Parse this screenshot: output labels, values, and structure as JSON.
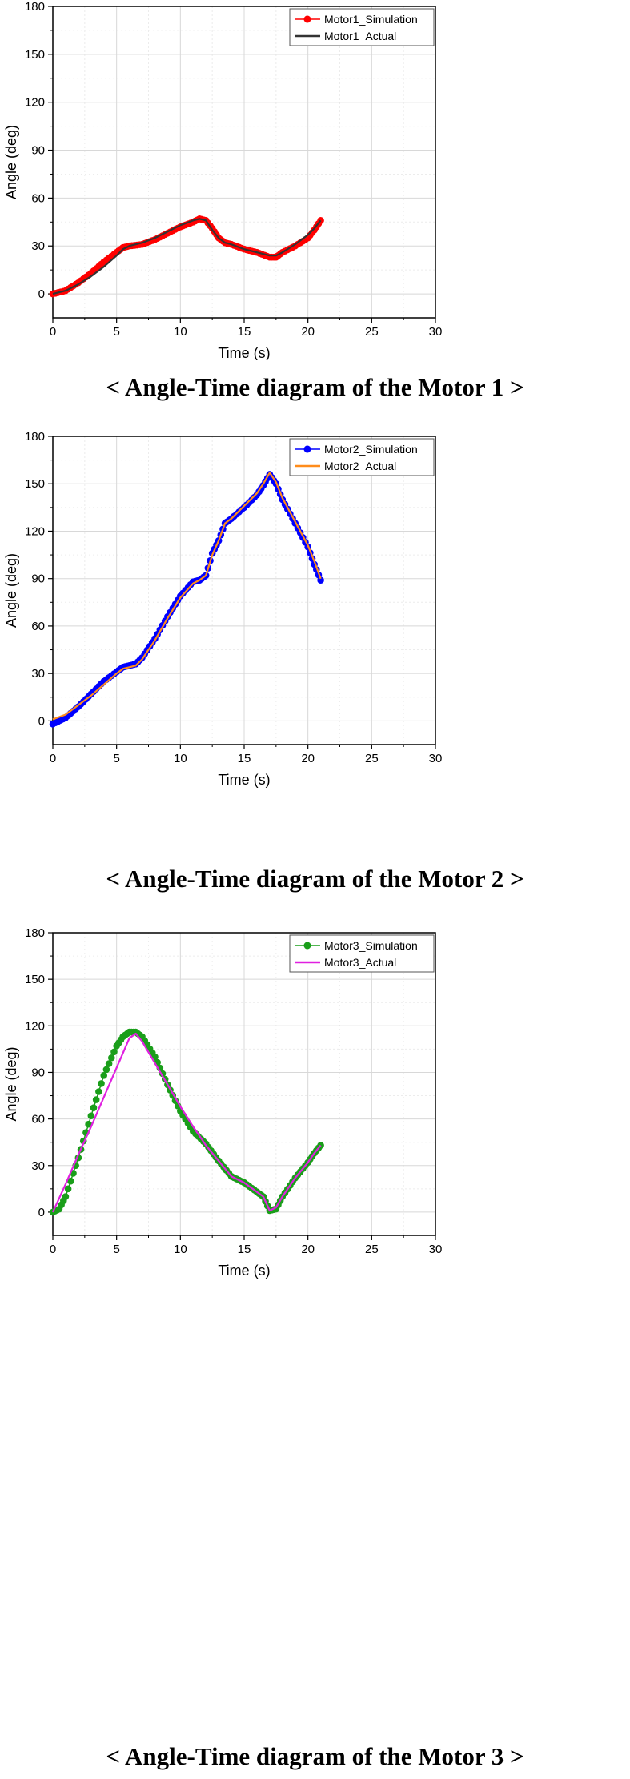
{
  "captions": [
    "< Angle-Time diagram of the Motor 1 >",
    "< Angle-Time diagram of the Motor 2 >",
    "< Angle-Time diagram of the Motor 3 >"
  ],
  "chart_data": [
    {
      "type": "line",
      "xlabel": "Time (s)",
      "ylabel": "Angle (deg)",
      "xlim": [
        0,
        30
      ],
      "ylim": [
        -15,
        180
      ],
      "xticks": [
        0,
        5,
        10,
        15,
        20,
        25,
        30
      ],
      "yticks": [
        0,
        30,
        60,
        90,
        120,
        150,
        180
      ],
      "grid": true,
      "legend_position": "top-right",
      "series": [
        {
          "name": "Motor1_Simulation",
          "style": "line-markers",
          "color": "#ff0000",
          "points": [
            [
              0,
              0
            ],
            [
              1,
              2
            ],
            [
              2,
              7
            ],
            [
              3,
              13
            ],
            [
              4,
              20
            ],
            [
              5,
              26
            ],
            [
              5.5,
              29
            ],
            [
              6,
              30
            ],
            [
              7,
              31
            ],
            [
              8,
              34
            ],
            [
              9,
              38
            ],
            [
              10,
              42
            ],
            [
              11,
              45
            ],
            [
              11.5,
              47
            ],
            [
              12,
              46
            ],
            [
              12.5,
              41
            ],
            [
              13,
              35
            ],
            [
              13.5,
              32
            ],
            [
              14,
              31
            ],
            [
              15,
              28
            ],
            [
              16,
              26
            ],
            [
              17,
              23
            ],
            [
              17.5,
              23
            ],
            [
              18,
              26
            ],
            [
              19,
              30
            ],
            [
              20,
              35
            ],
            [
              20.5,
              40
            ],
            [
              21,
              46
            ]
          ]
        },
        {
          "name": "Motor1_Actual",
          "style": "line",
          "color": "#333333",
          "points": [
            [
              0,
              0
            ],
            [
              1,
              2
            ],
            [
              2,
              6
            ],
            [
              3,
              11
            ],
            [
              4,
              17
            ],
            [
              5,
              24
            ],
            [
              5.5,
              28
            ],
            [
              6,
              30
            ],
            [
              7,
              32
            ],
            [
              8,
              35
            ],
            [
              9,
              39
            ],
            [
              10,
              43
            ],
            [
              11,
              46
            ],
            [
              11.5,
              47
            ],
            [
              12,
              46
            ],
            [
              12.5,
              40
            ],
            [
              13,
              35
            ],
            [
              13.5,
              32
            ],
            [
              14,
              31
            ],
            [
              15,
              28
            ],
            [
              16,
              26
            ],
            [
              17,
              24
            ],
            [
              17.5,
              24
            ],
            [
              18,
              26
            ],
            [
              19,
              31
            ],
            [
              20,
              37
            ],
            [
              20.5,
              41
            ],
            [
              21,
              46
            ]
          ]
        }
      ]
    },
    {
      "type": "line",
      "xlabel": "Time (s)",
      "ylabel": "Angle (deg)",
      "xlim": [
        0,
        30
      ],
      "ylim": [
        -15,
        180
      ],
      "xticks": [
        0,
        5,
        10,
        15,
        20,
        25,
        30
      ],
      "yticks": [
        0,
        30,
        60,
        90,
        120,
        150,
        180
      ],
      "grid": true,
      "legend_position": "top-right",
      "series": [
        {
          "name": "Motor2_Simulation",
          "style": "line-markers",
          "color": "#0000ff",
          "points": [
            [
              0,
              -2
            ],
            [
              1,
              2
            ],
            [
              2,
              9
            ],
            [
              3,
              17
            ],
            [
              4,
              25
            ],
            [
              5,
              31
            ],
            [
              5.5,
              34
            ],
            [
              6,
              35
            ],
            [
              6.5,
              36
            ],
            [
              7,
              40
            ],
            [
              8,
              52
            ],
            [
              9,
              66
            ],
            [
              10,
              79
            ],
            [
              11,
              88
            ],
            [
              11.5,
              89
            ],
            [
              12,
              92
            ],
            [
              12.5,
              106
            ],
            [
              13,
              114
            ],
            [
              13.5,
              125
            ],
            [
              14,
              128
            ],
            [
              15,
              135
            ],
            [
              16,
              143
            ],
            [
              16.5,
              149
            ],
            [
              17,
              156
            ],
            [
              17.5,
              150
            ],
            [
              18,
              140
            ],
            [
              19,
              125
            ],
            [
              20,
              110
            ],
            [
              20.5,
              99
            ],
            [
              21,
              89
            ]
          ]
        },
        {
          "name": "Motor2_Actual",
          "style": "line",
          "color": "#ff8c1a",
          "points": [
            [
              0,
              1
            ],
            [
              1,
              4
            ],
            [
              2,
              10
            ],
            [
              3,
              16
            ],
            [
              4,
              23
            ],
            [
              5,
              30
            ],
            [
              5.5,
              33
            ],
            [
              6,
              34
            ],
            [
              6.5,
              35
            ],
            [
              7,
              39
            ],
            [
              8,
              51
            ],
            [
              9,
              65
            ],
            [
              10,
              78
            ],
            [
              11,
              87
            ],
            [
              11.5,
              89
            ],
            [
              12,
              92
            ],
            [
              12.5,
              105
            ],
            [
              13,
              114
            ],
            [
              13.5,
              125
            ],
            [
              14,
              128
            ],
            [
              15,
              136
            ],
            [
              16,
              144
            ],
            [
              16.5,
              150
            ],
            [
              17,
              157
            ],
            [
              17.5,
              151
            ],
            [
              18,
              141
            ],
            [
              19,
              126
            ],
            [
              20,
              111
            ],
            [
              20.5,
              101
            ],
            [
              21,
              90
            ]
          ]
        }
      ]
    },
    {
      "type": "line",
      "xlabel": "Time (s)",
      "ylabel": "Angle (deg)",
      "xlim": [
        0,
        30
      ],
      "ylim": [
        -15,
        180
      ],
      "xticks": [
        0,
        5,
        10,
        15,
        20,
        25,
        30
      ],
      "yticks": [
        0,
        30,
        60,
        90,
        120,
        150,
        180
      ],
      "grid": true,
      "legend_position": "top-right",
      "series": [
        {
          "name": "Motor3_Simulation",
          "style": "line-markers",
          "color": "#1a9e1a",
          "points": [
            [
              0,
              0
            ],
            [
              0.5,
              2
            ],
            [
              1,
              10
            ],
            [
              2,
              35
            ],
            [
              3,
              62
            ],
            [
              4,
              88
            ],
            [
              5,
              107
            ],
            [
              5.5,
              113
            ],
            [
              6,
              116
            ],
            [
              6.5,
              116
            ],
            [
              7,
              113
            ],
            [
              8,
              100
            ],
            [
              9,
              82
            ],
            [
              10,
              65
            ],
            [
              11,
              52
            ],
            [
              12,
              44
            ],
            [
              13,
              33
            ],
            [
              14,
              23
            ],
            [
              15,
              19
            ],
            [
              16,
              13
            ],
            [
              16.5,
              10
            ],
            [
              17,
              1
            ],
            [
              17.5,
              2
            ],
            [
              18,
              10
            ],
            [
              19,
              22
            ],
            [
              20,
              32
            ],
            [
              20.5,
              38
            ],
            [
              21,
              43
            ]
          ]
        },
        {
          "name": "Motor3_Actual",
          "style": "line",
          "color": "#e020e0",
          "points": [
            [
              0,
              0
            ],
            [
              1,
              18
            ],
            [
              2,
              37
            ],
            [
              3,
              55
            ],
            [
              4,
              74
            ],
            [
              5,
              93
            ],
            [
              6,
              112
            ],
            [
              6.5,
              115
            ],
            [
              7,
              110
            ],
            [
              8,
              96
            ],
            [
              9,
              82
            ],
            [
              10,
              68
            ],
            [
              11,
              55
            ],
            [
              12,
              43
            ],
            [
              13,
              33
            ],
            [
              14,
              23
            ],
            [
              15,
              19
            ],
            [
              16,
              13
            ],
            [
              16.5,
              10
            ],
            [
              17,
              1
            ],
            [
              17.5,
              3
            ],
            [
              18,
              10
            ],
            [
              19,
              22
            ],
            [
              20,
              32
            ],
            [
              20.5,
              38
            ],
            [
              21,
              43
            ]
          ]
        }
      ]
    }
  ]
}
